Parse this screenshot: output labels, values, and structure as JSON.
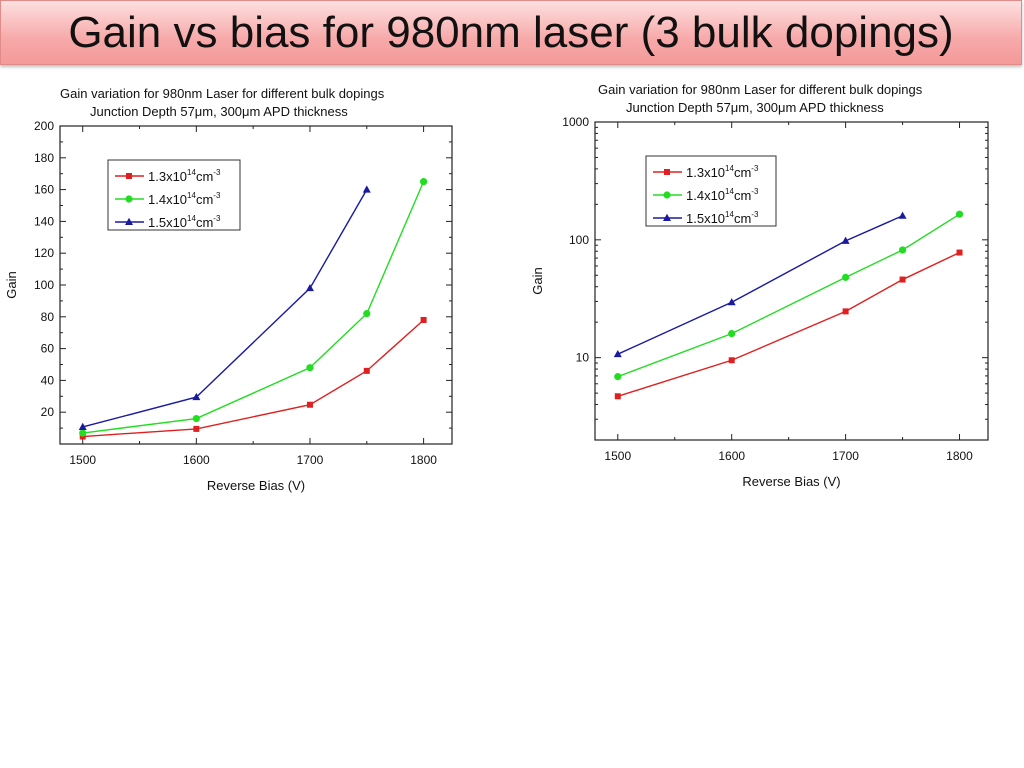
{
  "slide": {
    "title": "Gain vs bias for 980nm laser (3 bulk dopings)"
  },
  "colors": {
    "series1": "#e02020",
    "series2": "#22dd22",
    "series3": "#1a1aa0"
  },
  "chart_data": [
    {
      "type": "line",
      "title_line1": "Gain variation for 980nm Laser for different bulk dopings",
      "title_line2": "Junction Depth  57μm, 300μm APD thickness",
      "xlabel": "Reverse Bias (V)",
      "ylabel": "Gain",
      "xlim": [
        1480,
        1825
      ],
      "ylim": [
        0,
        200
      ],
      "yscale": "linear",
      "xticks": [
        1500,
        1600,
        1700,
        1800
      ],
      "yticks": [
        20,
        40,
        60,
        80,
        100,
        120,
        140,
        160,
        180,
        200
      ],
      "legend_position": "top-left",
      "series": [
        {
          "legend_base": "1.3x10",
          "legend_exp": "14",
          "legend_unit": "cm",
          "legend_unit_exp": "-3",
          "marker": "square",
          "x": [
            1500,
            1600,
            1700,
            1750,
            1800
          ],
          "y": [
            4.7,
            9.5,
            24.7,
            46,
            78
          ]
        },
        {
          "legend_base": "1.4x10",
          "legend_exp": "14",
          "legend_unit": "cm",
          "legend_unit_exp": "-3",
          "marker": "circle",
          "x": [
            1500,
            1600,
            1700,
            1750,
            1800
          ],
          "y": [
            6.9,
            16,
            48,
            82,
            165
          ]
        },
        {
          "legend_base": "1.5x10",
          "legend_exp": "14",
          "legend_unit": "cm",
          "legend_unit_exp": "-3",
          "marker": "triangle",
          "x": [
            1500,
            1600,
            1700,
            1750
          ],
          "y": [
            10.7,
            29.5,
            98,
            160
          ]
        }
      ]
    },
    {
      "type": "line",
      "title_line1": "Gain variation for 980nm Laser for different bulk dopings",
      "title_line2": "Junction Depth  57μm, 300μm APD thickness",
      "xlabel": "Reverse Bias (V)",
      "ylabel": "Gain",
      "xlim": [
        1480,
        1825
      ],
      "ylim": [
        2,
        1000
      ],
      "yscale": "log",
      "xticks": [
        1500,
        1600,
        1700,
        1800
      ],
      "yticks": [
        10,
        100,
        1000
      ],
      "legend_position": "top-left",
      "series": [
        {
          "legend_base": "1.3x10",
          "legend_exp": "14",
          "legend_unit": "cm",
          "legend_unit_exp": "-3",
          "marker": "square",
          "x": [
            1500,
            1600,
            1700,
            1750,
            1800
          ],
          "y": [
            4.7,
            9.5,
            24.7,
            46,
            78
          ]
        },
        {
          "legend_base": "1.4x10",
          "legend_exp": "14",
          "legend_unit": "cm",
          "legend_unit_exp": "-3",
          "marker": "circle",
          "x": [
            1500,
            1600,
            1700,
            1750,
            1800
          ],
          "y": [
            6.9,
            16,
            48,
            82,
            165
          ]
        },
        {
          "legend_base": "1.5x10",
          "legend_exp": "14",
          "legend_unit": "cm",
          "legend_unit_exp": "-3",
          "marker": "triangle",
          "x": [
            1500,
            1600,
            1700,
            1750
          ],
          "y": [
            10.7,
            29.5,
            98,
            160
          ]
        }
      ]
    }
  ]
}
